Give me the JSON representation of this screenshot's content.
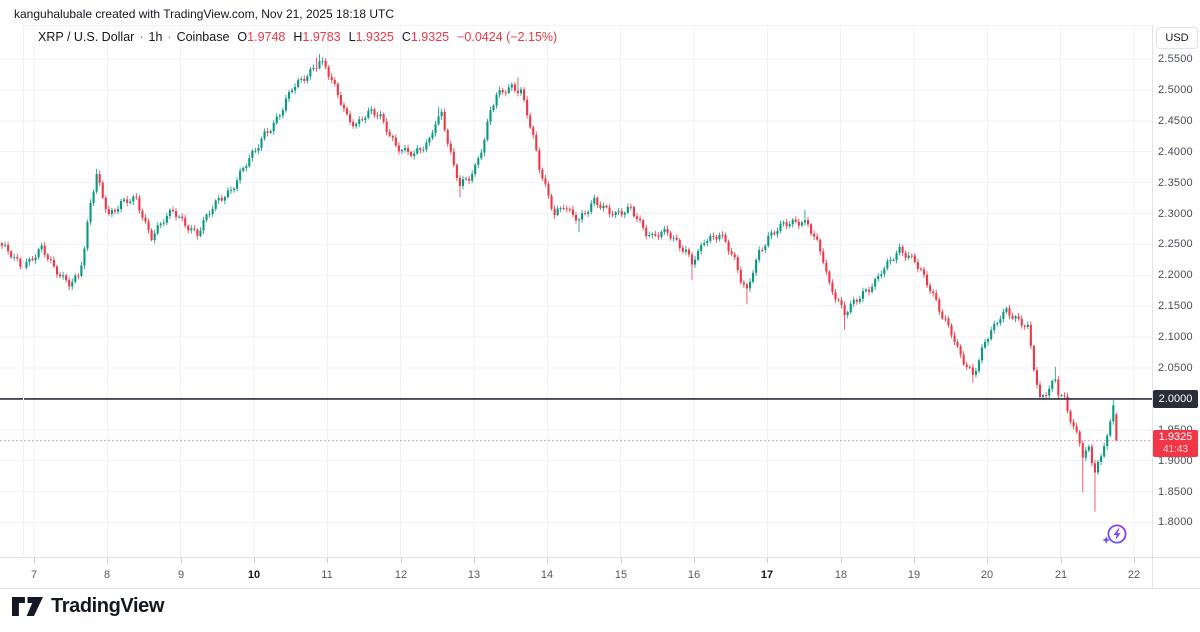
{
  "attribution": "kanguhalubale created with TradingView.com, Nov 21, 2025 18:18 UTC",
  "legend": {
    "symbol": "XRP / U.S. Dollar",
    "separator": "·",
    "interval": "1h",
    "exchange": "Coinbase",
    "ohlc": [
      {
        "label": "O",
        "value": "1.9748"
      },
      {
        "label": "H",
        "value": "1.9783"
      },
      {
        "label": "L",
        "value": "1.9325"
      },
      {
        "label": "C",
        "value": "1.9325"
      }
    ],
    "change": "−0.0424 (−2.15%)"
  },
  "price_axis": {
    "currency": "USD",
    "line_badge": "2.0000",
    "price_badge": {
      "price": "1.9325",
      "countdown": "41:43"
    }
  },
  "logo": {
    "text": "TradingView"
  },
  "colors": {
    "up": "#089981",
    "down": "#f23645",
    "grid": "#f0f2f6",
    "level_line": "#2a2e39",
    "price_line": "rgba(242,54,69,0.5)",
    "axis_text": "#4a4e59",
    "border": "#e0e3eb",
    "badge_dark": "#2a2e39",
    "badge_red": "#f23645",
    "icon_purple": "#9333ea",
    "icon_blue": "#5b5bf7"
  },
  "chart_data": {
    "type": "candlestick",
    "symbol": "XRP/USD",
    "interval": "1h",
    "exchange": "Coinbase",
    "grid": true,
    "ylim": [
      1.78,
      2.58
    ],
    "y_axis": {
      "ticks": [
        {
          "label": "2.5500",
          "price": 2.55
        },
        {
          "label": "2.5000",
          "price": 2.5
        },
        {
          "label": "2.4500",
          "price": 2.45
        },
        {
          "label": "2.4000",
          "price": 2.4
        },
        {
          "label": "2.3500",
          "price": 2.35
        },
        {
          "label": "2.3000",
          "price": 2.3
        },
        {
          "label": "2.2500",
          "price": 2.25
        },
        {
          "label": "2.2000",
          "price": 2.2
        },
        {
          "label": "2.1500",
          "price": 2.15
        },
        {
          "label": "2.1000",
          "price": 2.1
        },
        {
          "label": "2.0500",
          "price": 2.05
        },
        {
          "label": "2.0000",
          "price": 2.0,
          "badge": "dark"
        },
        {
          "label": "1.9500",
          "price": 1.95
        },
        {
          "label": "1.9000",
          "price": 1.9
        },
        {
          "label": "1.8500",
          "price": 1.85
        },
        {
          "label": "1.8000",
          "price": 1.8
        }
      ]
    },
    "x_days": [
      {
        "t": "7"
      },
      {
        "t": "8"
      },
      {
        "t": "9"
      },
      {
        "t": "10",
        "b": true
      },
      {
        "t": "11"
      },
      {
        "t": "12"
      },
      {
        "t": "13"
      },
      {
        "t": "14"
      },
      {
        "t": "15"
      },
      {
        "t": "16"
      },
      {
        "t": "17",
        "b": true
      },
      {
        "t": "18"
      },
      {
        "t": "19"
      },
      {
        "t": "20"
      },
      {
        "t": "21"
      },
      {
        "t": "22"
      }
    ],
    "level_line_price": 2.0,
    "current_price": 1.9325,
    "n_candles": 366,
    "close_waypoints": [
      [
        0,
        2.245
      ],
      [
        3,
        2.232
      ],
      [
        6,
        2.218
      ],
      [
        9,
        2.225
      ],
      [
        13,
        2.242
      ],
      [
        17,
        2.21
      ],
      [
        22,
        2.19
      ],
      [
        25,
        2.198
      ],
      [
        27,
        2.24
      ],
      [
        29,
        2.315
      ],
      [
        31,
        2.362
      ],
      [
        33,
        2.33
      ],
      [
        35,
        2.3
      ],
      [
        39,
        2.315
      ],
      [
        44,
        2.322
      ],
      [
        47,
        2.285
      ],
      [
        49,
        2.265
      ],
      [
        53,
        2.288
      ],
      [
        56,
        2.302
      ],
      [
        60,
        2.285
      ],
      [
        64,
        2.268
      ],
      [
        68,
        2.3
      ],
      [
        71,
        2.322
      ],
      [
        75,
        2.34
      ],
      [
        79,
        2.372
      ],
      [
        83,
        2.4
      ],
      [
        86,
        2.43
      ],
      [
        89,
        2.447
      ],
      [
        92,
        2.47
      ],
      [
        95,
        2.5
      ],
      [
        98,
        2.515
      ],
      [
        101,
        2.532
      ],
      [
        104,
        2.548
      ],
      [
        106,
        2.535
      ],
      [
        108,
        2.512
      ],
      [
        111,
        2.48
      ],
      [
        113,
        2.458
      ],
      [
        116,
        2.445
      ],
      [
        118,
        2.455
      ],
      [
        121,
        2.462
      ],
      [
        124,
        2.455
      ],
      [
        127,
        2.43
      ],
      [
        129,
        2.412
      ],
      [
        132,
        2.4
      ],
      [
        135,
        2.393
      ],
      [
        137,
        2.402
      ],
      [
        140,
        2.42
      ],
      [
        142,
        2.452
      ],
      [
        144,
        2.462
      ],
      [
        146,
        2.415
      ],
      [
        148,
        2.372
      ],
      [
        150,
        2.345
      ],
      [
        153,
        2.36
      ],
      [
        155,
        2.377
      ],
      [
        158,
        2.42
      ],
      [
        160,
        2.465
      ],
      [
        162,
        2.488
      ],
      [
        165,
        2.5
      ],
      [
        167,
        2.507
      ],
      [
        170,
        2.5
      ],
      [
        172,
        2.462
      ],
      [
        174,
        2.42
      ],
      [
        176,
        2.372
      ],
      [
        179,
        2.328
      ],
      [
        181,
        2.302
      ],
      [
        184,
        2.315
      ],
      [
        186,
        2.3
      ],
      [
        189,
        2.286
      ],
      [
        191,
        2.3
      ],
      [
        194,
        2.324
      ],
      [
        196,
        2.316
      ],
      [
        199,
        2.302
      ],
      [
        201,
        2.295
      ],
      [
        204,
        2.302
      ],
      [
        206,
        2.31
      ],
      [
        208,
        2.296
      ],
      [
        211,
        2.27
      ],
      [
        213,
        2.26
      ],
      [
        216,
        2.266
      ],
      [
        218,
        2.27
      ],
      [
        221,
        2.256
      ],
      [
        224,
        2.24
      ],
      [
        226,
        2.22
      ],
      [
        228,
        2.232
      ],
      [
        230,
        2.254
      ],
      [
        233,
        2.262
      ],
      [
        235,
        2.27
      ],
      [
        237,
        2.256
      ],
      [
        240,
        2.222
      ],
      [
        242,
        2.19
      ],
      [
        244,
        2.172
      ],
      [
        246,
        2.21
      ],
      [
        248,
        2.24
      ],
      [
        251,
        2.262
      ],
      [
        254,
        2.272
      ],
      [
        256,
        2.28
      ],
      [
        259,
        2.286
      ],
      [
        262,
        2.29
      ],
      [
        264,
        2.284
      ],
      [
        267,
        2.25
      ],
      [
        269,
        2.222
      ],
      [
        271,
        2.182
      ],
      [
        274,
        2.16
      ],
      [
        276,
        2.142
      ],
      [
        279,
        2.156
      ],
      [
        281,
        2.162
      ],
      [
        284,
        2.176
      ],
      [
        286,
        2.19
      ],
      [
        288,
        2.21
      ],
      [
        291,
        2.226
      ],
      [
        294,
        2.238
      ],
      [
        296,
        2.23
      ],
      [
        299,
        2.224
      ],
      [
        301,
        2.21
      ],
      [
        304,
        2.18
      ],
      [
        306,
        2.156
      ],
      [
        308,
        2.13
      ],
      [
        311,
        2.106
      ],
      [
        313,
        2.082
      ],
      [
        315,
        2.064
      ],
      [
        318,
        2.04
      ],
      [
        320,
        2.06
      ],
      [
        322,
        2.09
      ],
      [
        325,
        2.116
      ],
      [
        327,
        2.136
      ],
      [
        329,
        2.146
      ],
      [
        332,
        2.13
      ],
      [
        334,
        2.12
      ],
      [
        336,
        2.112
      ],
      [
        338,
        2.05
      ],
      [
        340,
        2.0
      ],
      [
        341,
        2.008
      ],
      [
        343,
        2.02
      ],
      [
        345,
        2.032
      ],
      [
        346,
        2.01
      ],
      [
        348,
        1.996
      ],
      [
        349,
        1.978
      ],
      [
        351,
        1.952
      ],
      [
        353,
        1.932
      ],
      [
        354,
        1.912
      ],
      [
        356,
        1.922
      ],
      [
        357,
        1.902
      ],
      [
        358,
        1.886
      ],
      [
        360,
        1.902
      ],
      [
        361,
        1.925
      ],
      [
        362,
        1.94
      ],
      [
        363,
        1.956
      ],
      [
        364,
        1.985
      ],
      [
        365,
        1.9325
      ]
    ],
    "wick_overrides": [
      {
        "i": 22,
        "low": 2.176
      },
      {
        "i": 31,
        "high": 2.372
      },
      {
        "i": 103,
        "high": 2.552
      },
      {
        "i": 104,
        "high": 2.558
      },
      {
        "i": 143,
        "high": 2.472
      },
      {
        "i": 150,
        "low": 2.326
      },
      {
        "i": 169,
        "high": 2.52
      },
      {
        "i": 189,
        "low": 2.27
      },
      {
        "i": 226,
        "low": 2.192
      },
      {
        "i": 244,
        "low": 2.153
      },
      {
        "i": 263,
        "high": 2.306
      },
      {
        "i": 276,
        "low": 2.112
      },
      {
        "i": 294,
        "high": 2.247
      },
      {
        "i": 318,
        "low": 2.026
      },
      {
        "i": 345,
        "high": 2.052
      },
      {
        "i": 354,
        "low": 1.849
      },
      {
        "i": 358,
        "low": 1.8175
      },
      {
        "i": 364,
        "high": 1.998
      }
    ],
    "last_candle": {
      "o": 1.9748,
      "h": 1.9783,
      "l": 1.9325,
      "c": 1.9325
    }
  }
}
